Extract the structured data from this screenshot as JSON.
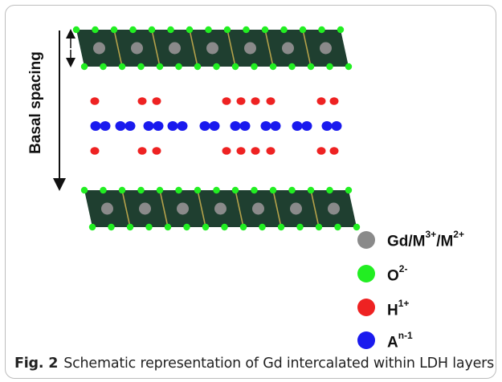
{
  "axis_label": "Basal spacing",
  "legend": [
    {
      "label": "Gd/M",
      "superscripts": [
        "3+",
        "2+"
      ],
      "separator": "/",
      "color": "#8a8a8a"
    },
    {
      "label": "O",
      "superscripts": [
        "2-"
      ],
      "color": "#22ee22"
    },
    {
      "label": "H",
      "superscripts": [
        "1+"
      ],
      "color": "#ee2222"
    },
    {
      "label": "A",
      "superscripts": [
        "n-1"
      ],
      "color": "#1a1aee"
    }
  ],
  "caption": {
    "fig_label": "Fig. 2",
    "text": "Schematic representation of Gd intercalated within LDH layers"
  },
  "colors": {
    "layer": "#1f3f30",
    "stripe": "#b5a24a",
    "metal": "#8a8a8a",
    "oxygen": "#22ee22",
    "hydrogen": "#ee2222",
    "anion": "#1a1aee"
  }
}
